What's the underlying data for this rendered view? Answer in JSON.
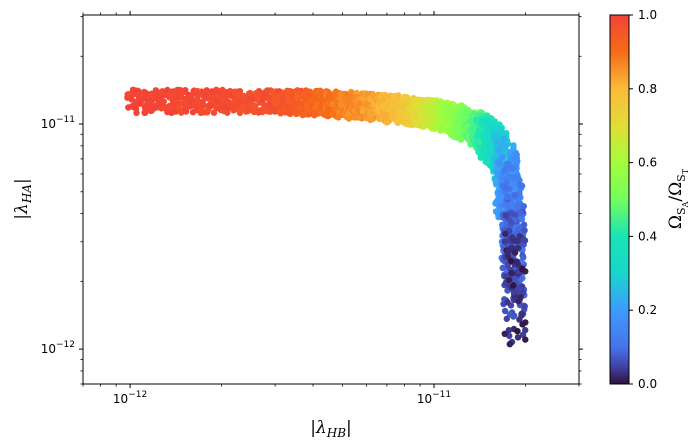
{
  "chart_data": {
    "type": "scatter",
    "xlabel": "|λ_HB|",
    "ylabel": "|λ_HA|",
    "xscale": "log",
    "yscale": "log",
    "xlim": [
      7e-13,
      3e-11
    ],
    "ylim": [
      7e-13,
      3.05e-11
    ],
    "xticks": [
      {
        "value": 1e-12,
        "base": "10",
        "exp": "−12"
      },
      {
        "value": 1e-11,
        "base": "10",
        "exp": "−11"
      }
    ],
    "yticks": [
      {
        "value": 1e-12,
        "base": "10",
        "exp": "−12"
      },
      {
        "value": 1e-11,
        "base": "10",
        "exp": "−11"
      }
    ],
    "grid": false,
    "colorbar": {
      "label": "Ω_SA/Ω_ST",
      "colormap": "turbo",
      "range": [
        0.0,
        1.0
      ],
      "ticks": [
        "0.0",
        "0.2",
        "0.4",
        "0.6",
        "0.8",
        "1.0"
      ]
    },
    "band": {
      "description_points": [
        {
          "x": 1e-12,
          "y_low": 1.12e-11,
          "y_high": 1.42e-11,
          "ratio": 1.0
        },
        {
          "x": 3e-12,
          "y_low": 1.12e-11,
          "y_high": 1.42e-11,
          "ratio": 0.97
        },
        {
          "x": 5e-12,
          "y_low": 1.07e-11,
          "y_high": 1.4e-11,
          "ratio": 0.88
        },
        {
          "x": 8e-12,
          "y_low": 1e-11,
          "y_high": 1.33e-11,
          "ratio": 0.78
        },
        {
          "x": 1.1e-11,
          "y_low": 9.3e-12,
          "y_high": 1.25e-11,
          "ratio": 0.6
        },
        {
          "x": 1.4e-11,
          "y_low": 8e-12,
          "y_high": 1.12e-11,
          "ratio": 0.45
        },
        {
          "x": 1.62e-11,
          "y_low": 6e-12,
          "y_high": 1e-11,
          "ratio": 0.32
        },
        {
          "x": 1.8e-11,
          "y_low": 3e-12,
          "y_high": 7e-12,
          "ratio": 0.15
        },
        {
          "x": 1.85e-11,
          "y_low": 1e-12,
          "y_high": 3e-12,
          "ratio": 0.02
        }
      ]
    }
  }
}
